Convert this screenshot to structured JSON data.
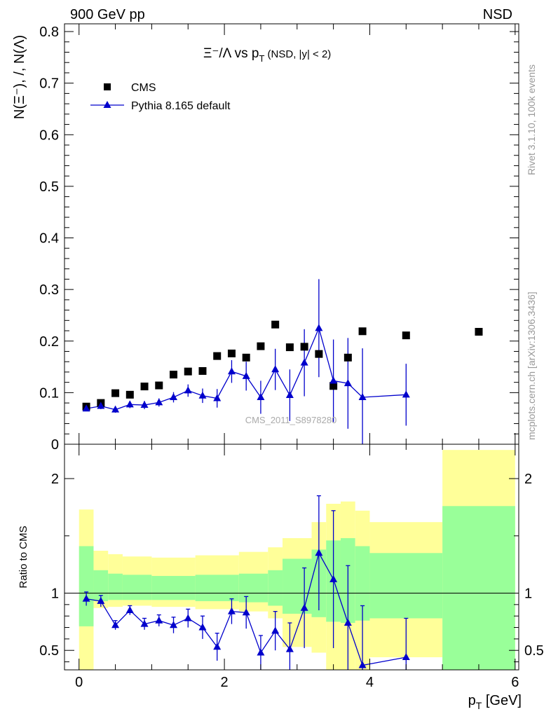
{
  "header": {
    "left": "900 GeV pp",
    "right": "NSD"
  },
  "side_labels": {
    "top": "Rivet 3.1.10,  100k events",
    "bottom": "mcplots.cern.ch [arXiv:1306.3436]"
  },
  "colors": {
    "cms": "#000000",
    "pythia": "#0000cc",
    "band_yellow": "#ffff99",
    "band_green": "#99ff99"
  },
  "chart_data": [
    {
      "type": "scatter",
      "title_main": "Ξ⁻/Λ  vs p",
      "title_sub": "T",
      "title_tail": " (NSD, |y| < 2)",
      "ylabel": "N(Ξ⁻), /, N(Λ)",
      "watermark": "CMS_2011_S8978280",
      "xlim": [
        -0.2,
        6.05
      ],
      "ylim": [
        0,
        0.815
      ],
      "yticks": [
        0,
        0.1,
        0.2,
        0.3,
        0.4,
        0.5,
        0.6,
        0.7,
        0.8
      ],
      "ytick_labels": [
        "0",
        "0.1",
        "0.2",
        "0.3",
        "0.4",
        "0.5",
        "0.6",
        "0.7",
        "0.8"
      ],
      "legend": {
        "position": "top-left",
        "entries": [
          "CMS",
          "Pythia 8.165 default"
        ]
      },
      "series": [
        {
          "name": "CMS",
          "marker": "square",
          "x": [
            0.1,
            0.3,
            0.5,
            0.7,
            0.9,
            1.1,
            1.3,
            1.5,
            1.7,
            1.9,
            2.1,
            2.3,
            2.5,
            2.7,
            2.9,
            3.1,
            3.3,
            3.5,
            3.7,
            3.9,
            4.5,
            5.5
          ],
          "values": [
            0.073,
            0.08,
            0.099,
            0.096,
            0.112,
            0.114,
            0.135,
            0.141,
            0.142,
            0.171,
            0.176,
            0.168,
            0.19,
            0.232,
            0.188,
            0.189,
            0.175,
            0.113,
            0.168,
            0.219,
            0.211,
            0.218
          ]
        },
        {
          "name": "Pythia 8.165 default",
          "marker": "triangle",
          "x": [
            0.1,
            0.3,
            0.5,
            0.7,
            0.9,
            1.1,
            1.3,
            1.5,
            1.7,
            1.9,
            2.1,
            2.3,
            2.5,
            2.7,
            2.9,
            3.1,
            3.3,
            3.5,
            3.7,
            3.9,
            4.5
          ],
          "values": [
            0.069,
            0.074,
            0.067,
            0.077,
            0.076,
            0.081,
            0.091,
            0.104,
            0.094,
            0.089,
            0.141,
            0.132,
            0.091,
            0.145,
            0.095,
            0.158,
            0.225,
            0.123,
            0.118,
            0.091,
            0.096
          ],
          "err": [
            0.005,
            0.006,
            0.006,
            0.007,
            0.008,
            0.008,
            0.01,
            0.012,
            0.014,
            0.018,
            0.022,
            0.028,
            0.032,
            0.04,
            0.05,
            0.065,
            0.095,
            0.08,
            0.088,
            0.095,
            0.06
          ]
        }
      ]
    },
    {
      "type": "line",
      "ylabel": "Ratio to CMS",
      "xlabel_main": "p",
      "xlabel_sub": "T",
      "xlabel_tail": " [GeV]",
      "xlim": [
        -0.2,
        6.05
      ],
      "ylim": [
        0.33,
        2.3
      ],
      "xticks": [
        0,
        2,
        4,
        6
      ],
      "xtick_labels": [
        "0",
        "2",
        "4",
        "6"
      ],
      "yticks": [
        0.5,
        1,
        2
      ],
      "ytick_labels": [
        "0.5",
        "1",
        "2"
      ],
      "reference_line": 1,
      "bands": [
        {
          "x0": 0.0,
          "x1": 0.2,
          "y_lo": 0.33,
          "y_hi": 1.73,
          "g_lo": 0.71,
          "g_hi": 1.41
        },
        {
          "x0": 0.2,
          "x1": 0.4,
          "y_lo": 0.87,
          "y_hi": 1.37,
          "g_lo": 0.93,
          "g_hi": 1.2
        },
        {
          "x0": 0.4,
          "x1": 0.6,
          "y_lo": 0.88,
          "y_hi": 1.34,
          "g_lo": 0.94,
          "g_hi": 1.17
        },
        {
          "x0": 0.6,
          "x1": 1.0,
          "y_lo": 0.89,
          "y_hi": 1.32,
          "g_lo": 0.94,
          "g_hi": 1.16
        },
        {
          "x0": 1.0,
          "x1": 1.6,
          "y_lo": 0.88,
          "y_hi": 1.31,
          "g_lo": 0.94,
          "g_hi": 1.15
        },
        {
          "x0": 1.6,
          "x1": 2.2,
          "y_lo": 0.86,
          "y_hi": 1.33,
          "g_lo": 0.93,
          "g_hi": 1.16
        },
        {
          "x0": 2.2,
          "x1": 2.6,
          "y_lo": 0.84,
          "y_hi": 1.36,
          "g_lo": 0.92,
          "g_hi": 1.17
        },
        {
          "x0": 2.6,
          "x1": 2.8,
          "y_lo": 0.78,
          "y_hi": 1.4,
          "g_lo": 0.89,
          "g_hi": 1.2
        },
        {
          "x0": 2.8,
          "x1": 3.2,
          "y_lo": 0.53,
          "y_hi": 1.48,
          "g_lo": 0.82,
          "g_hi": 1.3
        },
        {
          "x0": 3.2,
          "x1": 3.4,
          "y_lo": 0.48,
          "y_hi": 1.62,
          "g_lo": 0.79,
          "g_hi": 1.38
        },
        {
          "x0": 3.4,
          "x1": 3.6,
          "y_lo": 0.33,
          "y_hi": 1.78,
          "g_lo": 0.75,
          "g_hi": 1.46
        },
        {
          "x0": 3.6,
          "x1": 3.8,
          "y_lo": 0.33,
          "y_hi": 1.8,
          "g_lo": 0.74,
          "g_hi": 1.48
        },
        {
          "x0": 3.8,
          "x1": 4.0,
          "y_lo": 0.33,
          "y_hi": 1.72,
          "g_lo": 0.76,
          "g_hi": 1.41
        },
        {
          "x0": 4.0,
          "x1": 5.0,
          "y_lo": 0.44,
          "y_hi": 1.62,
          "g_lo": 0.78,
          "g_hi": 1.35
        },
        {
          "x0": 5.0,
          "x1": 6.0,
          "y_lo": 0.33,
          "y_hi": 2.25,
          "g_lo": 0.33,
          "g_hi": 1.76
        }
      ],
      "series": [
        {
          "name": "Pythia 8.165 default",
          "marker": "triangle",
          "x": [
            0.1,
            0.3,
            0.5,
            0.7,
            0.9,
            1.1,
            1.3,
            1.5,
            1.7,
            1.9,
            2.1,
            2.3,
            2.5,
            2.7,
            2.9,
            3.1,
            3.3,
            3.5,
            3.7,
            3.9,
            4.5
          ],
          "values": [
            0.95,
            0.93,
            0.72,
            0.85,
            0.73,
            0.76,
            0.72,
            0.78,
            0.7,
            0.53,
            0.84,
            0.83,
            0.48,
            0.67,
            0.51,
            0.87,
            1.35,
            1.12,
            0.74,
            0.37,
            0.44
          ],
          "err": [
            0.06,
            0.05,
            0.04,
            0.04,
            0.05,
            0.05,
            0.07,
            0.08,
            0.1,
            0.12,
            0.11,
            0.14,
            0.15,
            0.17,
            0.23,
            0.35,
            0.5,
            0.6,
            0.5,
            0.52,
            0.34
          ]
        }
      ]
    }
  ]
}
